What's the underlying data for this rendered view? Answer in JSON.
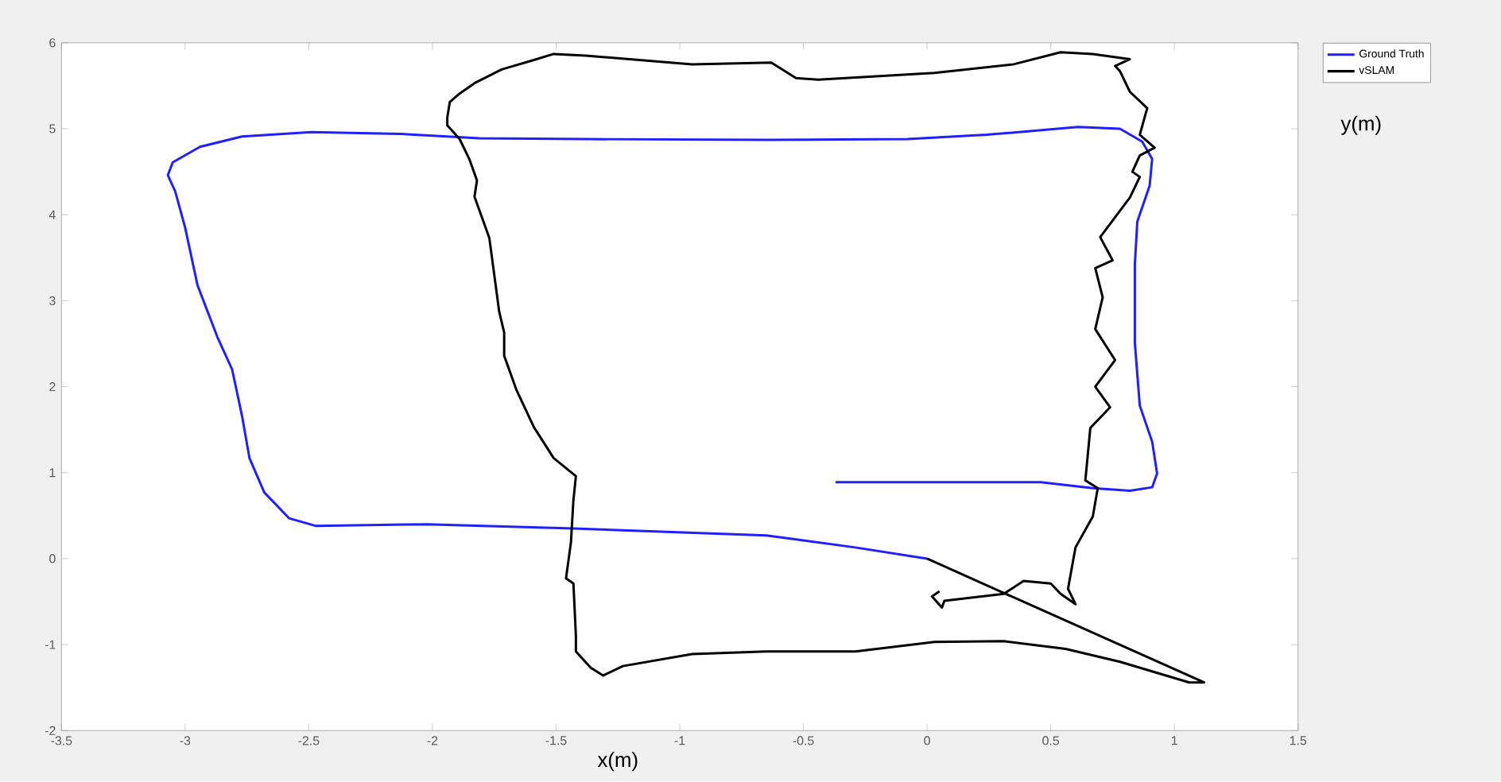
{
  "chart_data": {
    "type": "line",
    "xlabel": "x(m)",
    "ylabel": "y(m)",
    "xlim": [
      -3.5,
      1.5
    ],
    "ylim": [
      -2,
      6
    ],
    "xticks": [
      -3.5,
      -3,
      -2.5,
      -2,
      -1.5,
      -1,
      -0.5,
      0,
      0.5,
      1,
      1.5
    ],
    "yticks": [
      -2,
      -1,
      0,
      1,
      2,
      3,
      4,
      5,
      6
    ],
    "legend": "top right",
    "series": [
      {
        "name": "Ground Truth",
        "color": "#1f1fff",
        "x": [
          0,
          -0.29,
          -0.65,
          -1.43,
          -2.02,
          -2.47,
          -2.58,
          -2.68,
          -2.74,
          -2.77,
          -2.81,
          -2.87,
          -2.95,
          -3.0,
          -3.04,
          -3.07,
          -3.05,
          -2.94,
          -2.77,
          -2.49,
          -2.13,
          -1.81,
          -1.38,
          -0.65,
          -0.08,
          0.24,
          0.61,
          0.78,
          0.87,
          0.91,
          0.9,
          0.85,
          0.84,
          0.84,
          0.86,
          0.91,
          0.93,
          0.91,
          0.82,
          0.67,
          0.46,
          0.14,
          -0.37
        ],
        "values": [
          0,
          0.13,
          0.27,
          0.35,
          0.4,
          0.38,
          0.47,
          0.77,
          1.17,
          1.66,
          2.2,
          2.58,
          3.18,
          3.85,
          4.27,
          4.46,
          4.61,
          4.79,
          4.91,
          4.96,
          4.94,
          4.89,
          4.88,
          4.87,
          4.88,
          4.93,
          5.02,
          5.0,
          4.85,
          4.65,
          4.34,
          3.92,
          3.42,
          2.51,
          1.78,
          1.36,
          0.99,
          0.83,
          0.79,
          0.82,
          0.89,
          0.89,
          0.89
        ]
      },
      {
        "name": "vSLAM",
        "color": "#000000",
        "x": [
          0,
          1.12,
          1.06,
          0.78,
          0.56,
          0.31,
          0.03,
          -0.29,
          -0.65,
          -0.95,
          -1.23,
          -1.31,
          -1.36,
          -1.42,
          -1.42,
          -1.43,
          -1.46,
          -1.44,
          -1.43,
          -1.42,
          -1.51,
          -1.59,
          -1.66,
          -1.71,
          -1.71,
          -1.73,
          -1.77,
          -1.8,
          -1.83,
          -1.82,
          -1.85,
          -1.89,
          -1.94,
          -1.94,
          -1.93,
          -1.89,
          -1.83,
          -1.72,
          -1.59,
          -1.51,
          -1.38,
          -0.95,
          -0.63,
          -0.53,
          -0.44,
          0.03,
          0.35,
          0.54,
          0.67,
          0.82,
          0.76,
          0.78,
          0.82,
          0.89,
          0.86,
          0.92,
          0.86,
          0.83,
          0.86,
          0.82,
          0.7,
          0.75,
          0.68,
          0.71,
          0.68,
          0.76,
          0.68,
          0.74,
          0.66,
          0.64,
          0.69,
          0.67,
          0.6,
          0.57,
          0.6,
          0.54,
          0.5,
          0.39,
          0.31,
          0.07,
          0.06,
          0.02,
          0.05
        ],
        "values": [
          0,
          -1.44,
          -1.44,
          -1.2,
          -1.05,
          -0.96,
          -0.97,
          -1.08,
          -1.08,
          -1.11,
          -1.25,
          -1.36,
          -1.27,
          -1.08,
          -0.9,
          -0.29,
          -0.23,
          0.19,
          0.68,
          0.96,
          1.17,
          1.53,
          1.96,
          2.36,
          2.63,
          2.87,
          3.73,
          3.97,
          4.21,
          4.4,
          4.64,
          4.88,
          5.04,
          5.13,
          5.31,
          5.41,
          5.53,
          5.69,
          5.8,
          5.87,
          5.85,
          5.75,
          5.77,
          5.59,
          5.57,
          5.65,
          5.75,
          5.89,
          5.87,
          5.81,
          5.73,
          5.67,
          5.43,
          5.24,
          4.93,
          4.78,
          4.69,
          4.5,
          4.44,
          4.2,
          3.74,
          3.47,
          3.38,
          3.04,
          2.67,
          2.31,
          2.0,
          1.76,
          1.52,
          0.91,
          0.82,
          0.49,
          0.13,
          -0.35,
          -0.53,
          -0.41,
          -0.29,
          -0.26,
          -0.41,
          -0.49,
          -0.57,
          -0.44,
          -0.38
        ]
      }
    ]
  }
}
